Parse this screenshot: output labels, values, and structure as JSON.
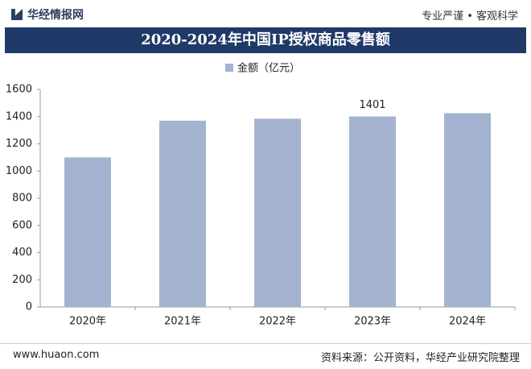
{
  "header": {
    "logo": "华经情报网",
    "slogan": "专业严谨 • 客观科学"
  },
  "chart_data": {
    "type": "bar",
    "title": "2020-2024年中国IP授权商品零售额",
    "categories": [
      "2020年",
      "2021年",
      "2022年",
      "2023年",
      "2024年"
    ],
    "series": [
      {
        "name": "金额（亿元）",
        "color": "#a4b3cf",
        "values": [
          1100,
          1370,
          1385,
          1401,
          1425
        ],
        "value_labels": [
          null,
          null,
          null,
          "1401",
          null
        ]
      }
    ],
    "ylim": [
      0,
      1600
    ],
    "yticks": [
      0,
      200,
      400,
      600,
      800,
      1000,
      1200,
      1400,
      1600
    ],
    "grid": false,
    "legend": "top"
  },
  "footer": {
    "site": "www.huaon.com",
    "source": "资料来源：公开资料，华经产业研究院整理"
  }
}
